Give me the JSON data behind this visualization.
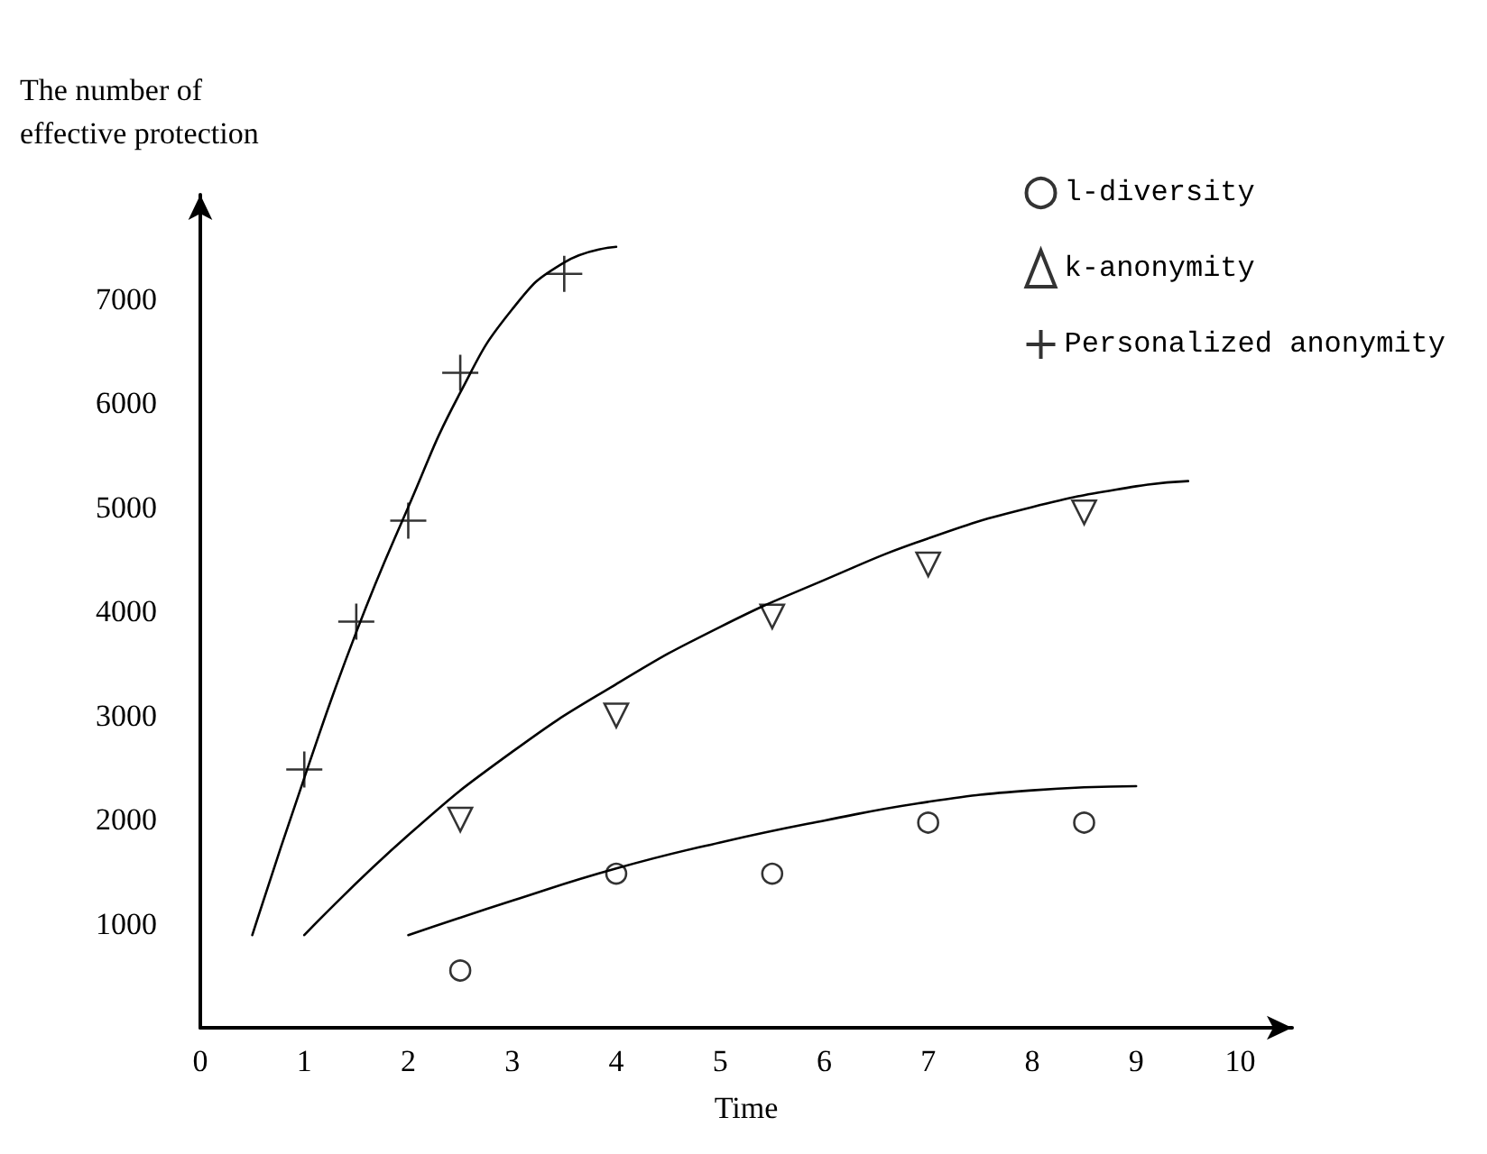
{
  "chart_data": {
    "type": "scatter",
    "ylabel": "The number of\neffective protection",
    "xlabel": "Time",
    "xlim": [
      0,
      10.5
    ],
    "xticks": [
      0,
      1,
      2,
      3,
      4,
      5,
      6,
      7,
      8,
      9,
      10
    ],
    "ylim": [
      0,
      8000
    ],
    "yticks": [
      1000,
      2000,
      3000,
      4000,
      5000,
      6000,
      7000
    ],
    "grid": false,
    "legend": "top right",
    "series": [
      {
        "name": "l-diversity",
        "color": "#000000",
        "marker": "circle",
        "x": [
          2.5,
          4,
          5.5,
          7,
          8.5
        ],
        "values": [
          550,
          1480,
          1480,
          1970,
          1970
        ]
      },
      {
        "name": "k-anonymity",
        "color": "#000000",
        "marker": "triangle",
        "x": [
          2.5,
          4,
          5.5,
          7,
          8.5
        ],
        "values": [
          2000,
          3000,
          3950,
          4450,
          4950
        ]
      },
      {
        "name": "Personalized anonymity",
        "color": "#000000",
        "marker": "cross",
        "x": [
          1,
          1.5,
          2,
          2.5,
          3.5
        ],
        "values": [
          2480,
          3900,
          4870,
          6290,
          7240
        ]
      },
      {
        "type": "line",
        "color": "#000000",
        "marker": "none",
        "x": [
          2,
          3,
          4,
          5,
          6,
          7,
          8,
          9
        ],
        "values": [
          890,
          1220,
          1530,
          1780,
          1990,
          2170,
          2280,
          2320
        ]
      },
      {
        "type": "line",
        "color": "#000000",
        "marker": "none",
        "x": [
          1,
          2,
          3,
          4,
          5,
          6,
          7,
          8,
          9,
          9.5
        ],
        "values": [
          890,
          1850,
          2650,
          3300,
          3850,
          4300,
          4700,
          5000,
          5200,
          5250
        ]
      },
      {
        "type": "line",
        "color": "#000000",
        "marker": "none",
        "x": [
          0.5,
          1,
          1.5,
          2,
          2.5,
          3,
          3.5,
          4
        ],
        "values": [
          890,
          2400,
          3800,
          5000,
          6100,
          6900,
          7350,
          7500
        ]
      }
    ]
  }
}
